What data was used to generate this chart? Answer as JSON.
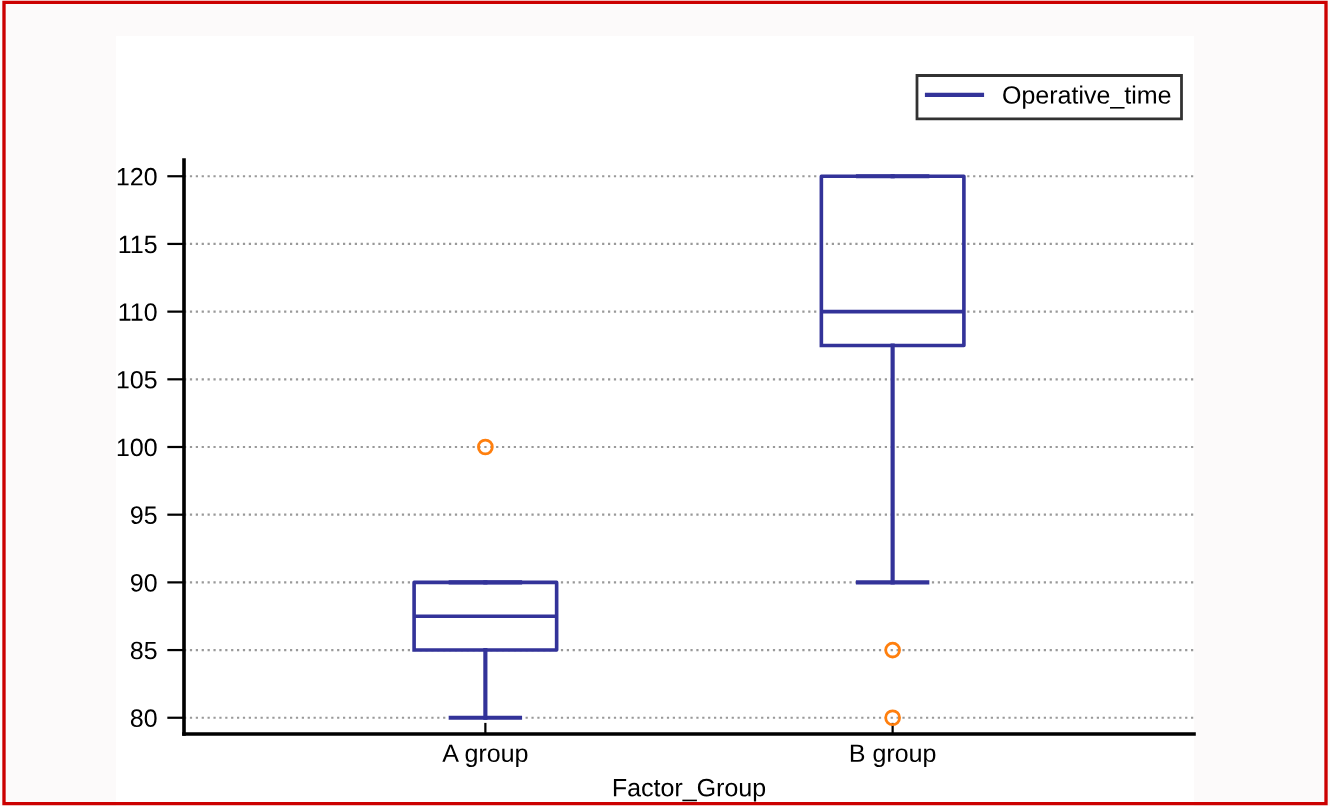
{
  "chart_data": {
    "type": "box",
    "xlabel": "Factor_Group",
    "categories": [
      "A group",
      "B group"
    ],
    "series": [
      {
        "name": "Operative_time",
        "color": "#333399",
        "boxes": [
          {
            "low": 80,
            "q1": 85,
            "median": 87.5,
            "q3": 90,
            "high": 90,
            "outliers": [
              100
            ]
          },
          {
            "low": 90,
            "q1": 107.5,
            "median": 110,
            "q3": 120,
            "high": 120,
            "outliers": [
              85,
              80
            ]
          }
        ]
      }
    ],
    "ylim": [
      78.8,
      121.2
    ],
    "yticks": [
      80,
      85,
      90,
      95,
      100,
      105,
      110,
      115,
      120
    ],
    "grid": "y",
    "legend": "top right"
  }
}
